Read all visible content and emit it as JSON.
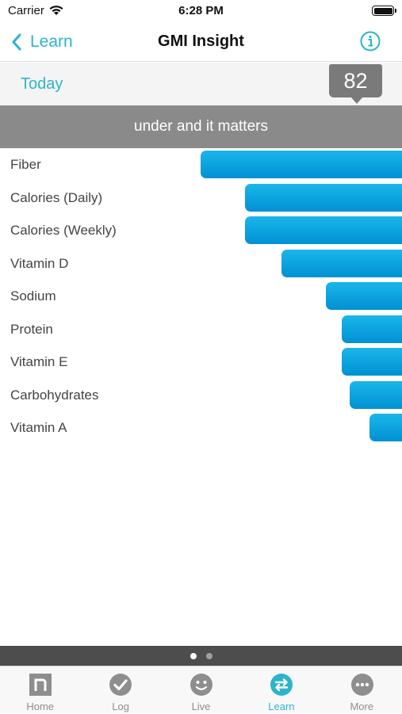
{
  "status_bar": {
    "carrier": "Carrier",
    "time": "6:28 PM"
  },
  "nav": {
    "back_label": "Learn",
    "title": "GMI Insight",
    "back_icon": "chevron-left-icon",
    "info_icon": "info-circle-icon"
  },
  "period": {
    "label": "Today",
    "score": "82"
  },
  "section_header": "under and it matters",
  "chart_data": {
    "type": "bar",
    "orientation": "horizontal",
    "title": "under and it matters",
    "categories": [
      "Fiber",
      "Calories (Daily)",
      "Calories (Weekly)",
      "Vitamin D",
      "Sodium",
      "Protein",
      "Vitamin E",
      "Carbohydrates",
      "Vitamin A"
    ],
    "values": [
      0.5,
      0.39,
      0.39,
      0.3,
      0.19,
      0.15,
      0.15,
      0.13,
      0.08
    ],
    "color": "#0aa3e0"
  },
  "pager": {
    "pages": 2,
    "current": 1
  },
  "tabs": [
    {
      "label": "Home",
      "icon": "home-n-icon",
      "active": false
    },
    {
      "label": "Log",
      "icon": "checkmark-circle-icon",
      "active": false
    },
    {
      "label": "Live",
      "icon": "smiley-face-icon",
      "active": false
    },
    {
      "label": "Learn",
      "icon": "swap-arrows-icon",
      "active": true
    },
    {
      "label": "More",
      "icon": "more-dots-icon",
      "active": false
    }
  ],
  "colors": {
    "accent": "#2cb4cc",
    "bar": "#0aa3e0",
    "header_gray": "#8a8a8a",
    "badge_gray": "#7a7a7a"
  }
}
